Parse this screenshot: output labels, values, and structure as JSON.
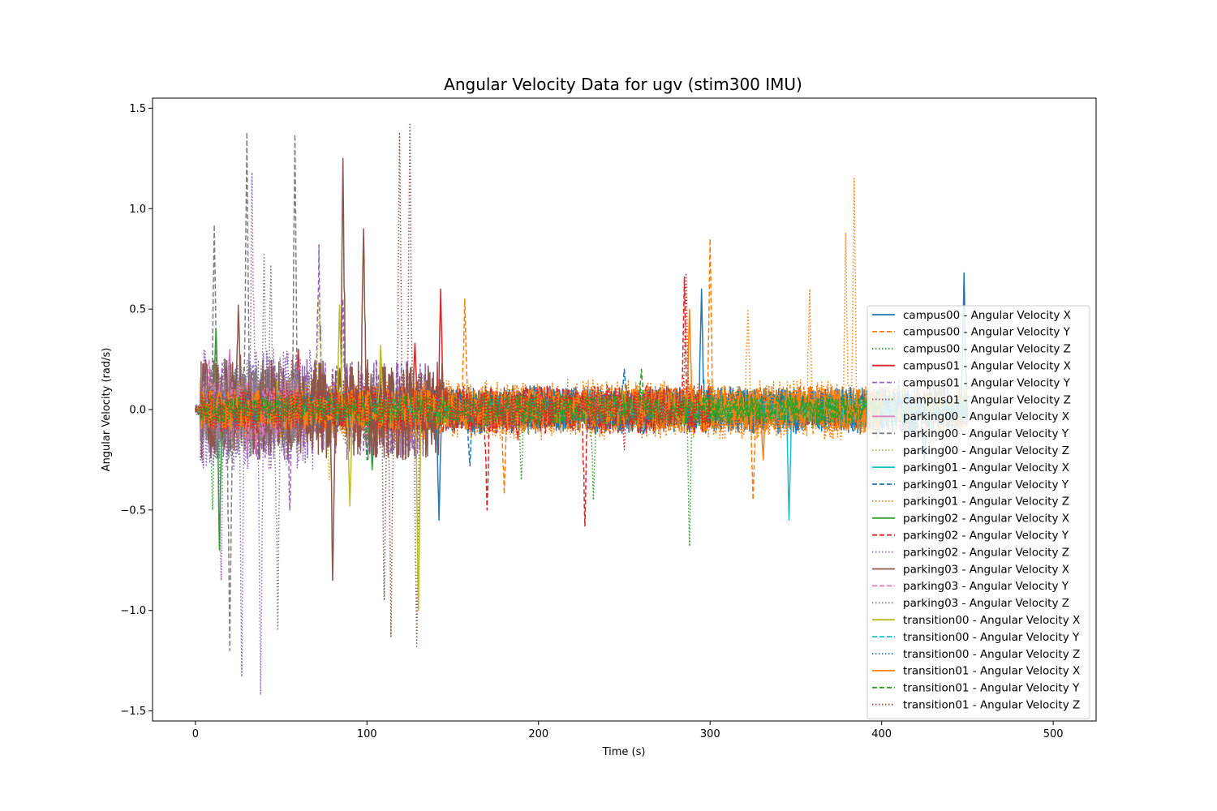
{
  "chart_data": {
    "type": "line",
    "title": "Angular Velocity Data for ugv (stim300 IMU)",
    "xlabel": "Time (s)",
    "ylabel": "Angular Velocity (rad/s)",
    "xlim": [
      -25,
      525
    ],
    "ylim": [
      -1.55,
      1.55
    ],
    "xticks": [
      0,
      100,
      200,
      300,
      400,
      500
    ],
    "xtick_labels": [
      "0",
      "100",
      "200",
      "300",
      "400",
      "500"
    ],
    "yticks": [
      -1.5,
      -1.0,
      -0.5,
      0.0,
      0.5,
      1.0,
      1.5
    ],
    "ytick_labels": [
      "−1.5",
      "−1.0",
      "−0.5",
      "0.0",
      "0.5",
      "1.0",
      "1.5"
    ],
    "grid": false,
    "legend_position": "center-right",
    "series": [
      {
        "name": "campus00 - Angular Velocity X",
        "color": "#1f77b4",
        "style": "solid",
        "x_range": [
          0,
          450
        ],
        "amplitude": 0.12,
        "spikes": [
          [
            295,
            0.6
          ],
          [
            448,
            0.68
          ],
          [
            425,
            -0.25
          ],
          [
            142,
            -0.55
          ]
        ]
      },
      {
        "name": "campus00 - Angular Velocity Y",
        "color": "#ff7f0e",
        "style": "dashed",
        "x_range": [
          0,
          450
        ],
        "amplitude": 0.12,
        "spikes": [
          [
            300,
            0.85
          ],
          [
            325,
            -0.45
          ],
          [
            157,
            0.55
          ],
          [
            180,
            -0.42
          ]
        ]
      },
      {
        "name": "campus00 - Angular Velocity Z",
        "color": "#2ca02c",
        "style": "dotted",
        "x_range": [
          0,
          450
        ],
        "amplitude": 0.1,
        "spikes": [
          [
            10,
            -0.5
          ],
          [
            288,
            -0.68
          ],
          [
            190,
            -0.35
          ],
          [
            232,
            -0.45
          ]
        ]
      },
      {
        "name": "campus01 - Angular Velocity X",
        "color": "#d62728",
        "style": "solid",
        "x_range": [
          0,
          375
        ],
        "amplitude": 0.08,
        "spikes": [
          [
            60,
            0.3
          ],
          [
            128,
            0.33
          ],
          [
            143,
            0.6
          ],
          [
            188,
            -0.15
          ]
        ]
      },
      {
        "name": "campus01 - Angular Velocity Y",
        "color": "#9467bd",
        "style": "dashed",
        "x_range": [
          0,
          135
        ],
        "amplitude": 0.25,
        "spikes": [
          [
            72,
            0.82
          ],
          [
            86,
            0.55
          ],
          [
            55,
            -0.5
          ]
        ]
      },
      {
        "name": "campus01 - Angular Velocity Z",
        "color": "#8c564b",
        "style": "dotted",
        "x_range": [
          0,
          135
        ],
        "amplitude": 0.2,
        "spikes": [
          [
            125,
            1.42
          ],
          [
            119,
            1.38
          ],
          [
            129,
            -1.18
          ],
          [
            114,
            -1.13
          ],
          [
            110,
            -0.95
          ]
        ]
      },
      {
        "name": "parking00 - Angular Velocity X",
        "color": "#e377c2",
        "style": "solid",
        "x_range": [
          0,
          45
        ],
        "amplitude": 0.15,
        "spikes": [
          [
            20,
            0.3
          ],
          [
            35,
            -0.22
          ]
        ]
      },
      {
        "name": "parking00 - Angular Velocity Y",
        "color": "#7f7f7f",
        "style": "dashed",
        "x_range": [
          0,
          60
        ],
        "amplitude": 0.2,
        "spikes": [
          [
            11,
            0.92
          ],
          [
            30,
            1.38
          ],
          [
            58,
            1.37
          ],
          [
            20,
            -1.2
          ]
        ]
      },
      {
        "name": "parking00 - Angular Velocity Z",
        "color": "#bcbd22",
        "style": "dotted",
        "x_range": [
          0,
          80
        ],
        "amplitude": 0.15,
        "spikes": [
          [
            72,
            0.55
          ],
          [
            78,
            -0.35
          ]
        ]
      },
      {
        "name": "parking01 - Angular Velocity X",
        "color": "#17becf",
        "style": "solid",
        "x_range": [
          0,
          420
        ],
        "amplitude": 0.05,
        "spikes": [
          [
            346,
            -0.55
          ],
          [
            230,
            0.1
          ]
        ]
      },
      {
        "name": "parking01 - Angular Velocity Y",
        "color": "#1f77b4",
        "style": "dashed",
        "x_range": [
          0,
          420
        ],
        "amplitude": 0.1,
        "spikes": [
          [
            160,
            -0.28
          ],
          [
            250,
            0.2
          ]
        ]
      },
      {
        "name": "parking01 - Angular Velocity Z",
        "color": "#ff7f0e",
        "style": "dotted",
        "x_range": [
          0,
          400
        ],
        "amplitude": 0.15,
        "spikes": [
          [
            384,
            1.15
          ],
          [
            379,
            0.88
          ],
          [
            358,
            0.6
          ],
          [
            322,
            0.5
          ]
        ]
      },
      {
        "name": "parking02 - Angular Velocity X",
        "color": "#2ca02c",
        "style": "solid",
        "x_range": [
          0,
          300
        ],
        "amplitude": 0.08,
        "spikes": [
          [
            14,
            -0.7
          ],
          [
            12,
            0.4
          ],
          [
            103,
            -0.3
          ]
        ]
      },
      {
        "name": "parking02 - Angular Velocity Y",
        "color": "#d62728",
        "style": "dashed",
        "x_range": [
          0,
          300
        ],
        "amplitude": 0.12,
        "spikes": [
          [
            227,
            -0.58
          ],
          [
            170,
            -0.5
          ],
          [
            285,
            0.66
          ]
        ]
      },
      {
        "name": "parking02 - Angular Velocity Z",
        "color": "#9467bd",
        "style": "dotted",
        "x_range": [
          0,
          70
        ],
        "amplitude": 0.3,
        "spikes": [
          [
            33,
            1.18
          ],
          [
            38,
            -1.42
          ],
          [
            27,
            -1.33
          ],
          [
            15,
            -0.85
          ]
        ]
      },
      {
        "name": "parking03 - Angular Velocity X",
        "color": "#8c564b",
        "style": "solid",
        "x_range": [
          0,
          145
        ],
        "amplitude": 0.25,
        "spikes": [
          [
            86,
            1.25
          ],
          [
            98,
            0.9
          ],
          [
            25,
            0.52
          ],
          [
            80,
            -0.85
          ]
        ]
      },
      {
        "name": "parking03 - Angular Velocity Y",
        "color": "#e377c2",
        "style": "dashed",
        "x_range": [
          0,
          60
        ],
        "amplitude": 0.15,
        "spikes": [
          [
            8,
            0.25
          ],
          [
            30,
            -0.2
          ]
        ]
      },
      {
        "name": "parking03 - Angular Velocity Z",
        "color": "#7f7f7f",
        "style": "dotted",
        "x_range": [
          0,
          60
        ],
        "amplitude": 0.25,
        "spikes": [
          [
            40,
            0.78
          ],
          [
            48,
            -1.1
          ],
          [
            44,
            0.72
          ]
        ]
      },
      {
        "name": "transition00 - Angular Velocity X",
        "color": "#bcbd22",
        "style": "solid",
        "x_range": [
          0,
          450
        ],
        "amplitude": 0.05,
        "spikes": [
          [
            84,
            0.52
          ],
          [
            90,
            -0.48
          ],
          [
            130,
            -1.0
          ],
          [
            108,
            0.32
          ]
        ]
      },
      {
        "name": "transition00 - Angular Velocity Y",
        "color": "#17becf",
        "style": "dashed",
        "x_range": [
          0,
          450
        ],
        "amplitude": 0.05,
        "spikes": [
          [
            410,
            0.12
          ],
          [
            430,
            -0.12
          ]
        ]
      },
      {
        "name": "transition00 - Angular Velocity Z",
        "color": "#1f77b4",
        "style": "dotted",
        "x_range": [
          0,
          450
        ],
        "amplitude": 0.08,
        "spikes": [
          [
            410,
            0.15
          ],
          [
            440,
            -0.12
          ]
        ]
      },
      {
        "name": "transition01 - Angular Velocity X",
        "color": "#ff7f0e",
        "style": "solid",
        "x_range": [
          0,
          400
        ],
        "amplitude": 0.1,
        "spikes": [
          [
            288,
            0.5
          ],
          [
            331,
            -0.25
          ]
        ]
      },
      {
        "name": "transition01 - Angular Velocity Y",
        "color": "#2ca02c",
        "style": "dashed",
        "x_range": [
          0,
          400
        ],
        "amplitude": 0.07,
        "spikes": [
          [
            100,
            -0.25
          ],
          [
            260,
            0.2
          ]
        ]
      },
      {
        "name": "transition01 - Angular Velocity Z",
        "color": "#d62728",
        "style": "dotted",
        "x_range": [
          0,
          300
        ],
        "amplitude": 0.1,
        "spikes": [
          [
            286,
            0.68
          ],
          [
            250,
            -0.2
          ]
        ]
      }
    ]
  }
}
